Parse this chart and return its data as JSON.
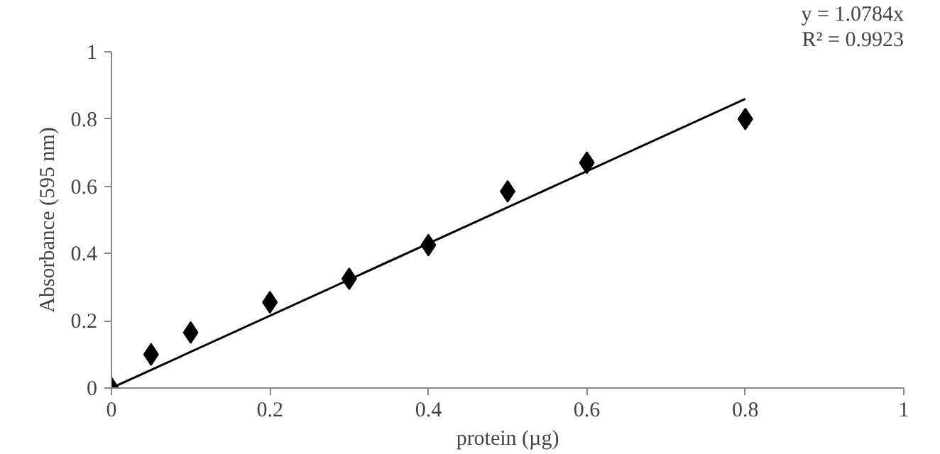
{
  "chart_data": {
    "type": "scatter",
    "xlabel": "protein (µg)",
    "ylabel": "Absorbance (595 nm)",
    "annotations": [
      "y = 1.0784x",
      "R² = 0.9923"
    ],
    "series": [
      {
        "color": "#000000",
        "marker": "diamond",
        "x": [
          0,
          0.05,
          0.1,
          0.2,
          0.3,
          0.4,
          0.5,
          0.6,
          0.8
        ],
        "values": [
          0,
          0.1,
          0.165,
          0.255,
          0.325,
          0.425,
          0.585,
          0.67,
          0.8
        ]
      },
      {
        "type": "line",
        "color": "#000000",
        "line_style": "solid",
        "x": [
          0,
          0.8
        ],
        "values": [
          0,
          0.86
        ]
      }
    ],
    "xlim": [
      0,
      1
    ],
    "ylim": [
      0,
      1
    ],
    "xticks": [
      0,
      0.2,
      0.4,
      0.6,
      0.8,
      1
    ],
    "yticks": [
      0,
      0.2,
      0.4,
      0.6,
      0.8,
      1
    ],
    "grid": false
  }
}
